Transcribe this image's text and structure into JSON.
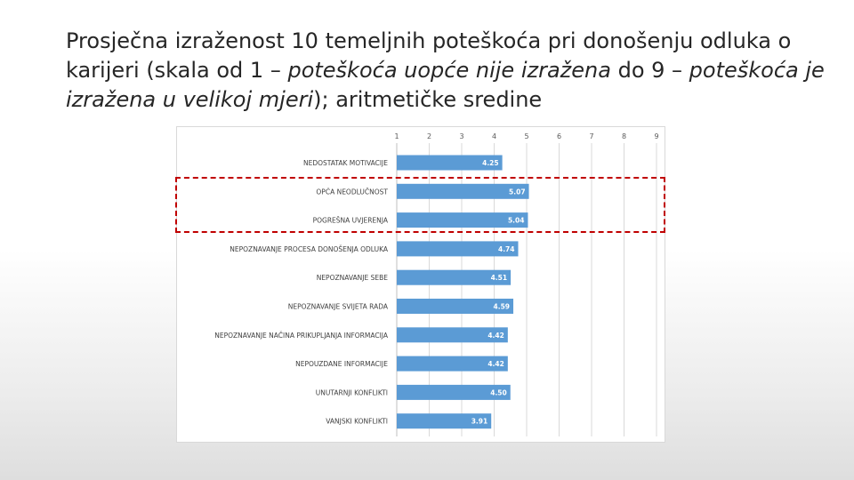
{
  "slide": {
    "title_part1": "Prosječna izraženost 10 temeljnih poteškoća pri donošenju odluka o karijeri (skala od 1 – ",
    "title_italic1": "poteškoća uopće nije izražena",
    "title_part2": " do 9 – ",
    "title_italic2": "poteškoća je izražena u velikoj mjeri",
    "title_part3": "); aritmetičke sredine"
  },
  "chart_data": {
    "type": "bar",
    "orientation": "horizontal",
    "categories": [
      "NEDOSTATAK MOTIVACIJE",
      "OPĆA NEODLUČNOST",
      "POGREŠNA UVJERENJA",
      "NEPOZNAVANJE PROCESA DONOŠENJA ODLUKA",
      "NEPOZNAVANJE SEBE",
      "NEPOZNAVANJE SVIJETA RADA",
      "NEPOZNAVANJE NAČINA PRIKUPLJANJA INFORMACIJA",
      "NEPOUZDANE INFORMACIJE",
      "UNUTARNJI KONFLIKTI",
      "VANJSKI KONFLIKTI"
    ],
    "values": [
      4.25,
      5.07,
      5.04,
      4.74,
      4.51,
      4.59,
      4.42,
      4.42,
      4.5,
      3.91
    ],
    "value_labels": [
      "4.25",
      "5.07",
      "5.04",
      "4.74",
      "4.51",
      "4.59",
      "4.42",
      "4.42",
      "4.50",
      "3.91"
    ],
    "x_ticks": [
      "1",
      "2",
      "3",
      "4",
      "5",
      "6",
      "7",
      "8",
      "9"
    ],
    "xlim": [
      1,
      9
    ],
    "axis_position": "top",
    "grid": true,
    "highlighted_categories": [
      "OPĆA NEODLUČNOST",
      "POGREŠNA UVJERENJA"
    ],
    "colors": {
      "bar": "#5b9bd5",
      "value_label": "#ffffff",
      "grid": "#d9d9d9",
      "category_label": "#404040",
      "tick_label": "#595959",
      "highlight": "#c00000"
    }
  }
}
